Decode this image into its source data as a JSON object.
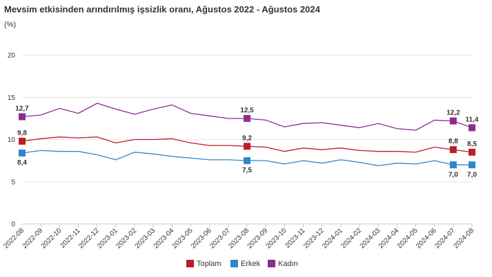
{
  "chart_data": {
    "type": "line",
    "title": "Mevsim etkisinden arındırılmış işsizlik oranı, Ağustos 2022 - Ağustos 2024",
    "ylabel": "(%)",
    "xlabel": "",
    "ylim": [
      0,
      20
    ],
    "yticks": [
      "0",
      "5",
      "10",
      "15",
      "20"
    ],
    "grid": true,
    "legend_position": "bottom",
    "categories": [
      "2022-08",
      "2022-09",
      "2022-10",
      "2022-11",
      "2022-12",
      "2023-01",
      "2023-02",
      "2023-03",
      "2023-04",
      "2023-05",
      "2023-06",
      "2023-07",
      "2023-08",
      "2023-09",
      "2023-10",
      "2023-11",
      "2023-12",
      "2024-01",
      "2024-02",
      "2024-03",
      "2024-04",
      "2024-05",
      "2024-06",
      "2024-07",
      "2024-08"
    ],
    "series": [
      {
        "name": "Toplam",
        "color": "#b81f26",
        "values": [
          9.8,
          10.1,
          10.3,
          10.2,
          10.3,
          9.6,
          10.0,
          10.0,
          10.1,
          9.6,
          9.3,
          9.3,
          9.2,
          9.1,
          8.6,
          9.0,
          8.8,
          9.0,
          8.7,
          8.6,
          8.6,
          8.5,
          9.1,
          8.8,
          8.5
        ],
        "labels": [
          {
            "index": 0,
            "text": "9,8",
            "pos": "above"
          },
          {
            "index": 12,
            "text": "9,2",
            "pos": "above"
          },
          {
            "index": 23,
            "text": "8,8",
            "pos": "above"
          },
          {
            "index": 24,
            "text": "8,5",
            "pos": "above"
          }
        ]
      },
      {
        "name": "Erkek",
        "color": "#2f87c8",
        "values": [
          8.4,
          8.7,
          8.6,
          8.6,
          8.2,
          7.6,
          8.5,
          8.3,
          8.0,
          7.8,
          7.6,
          7.6,
          7.5,
          7.5,
          7.1,
          7.5,
          7.2,
          7.6,
          7.3,
          6.9,
          7.2,
          7.1,
          7.5,
          7.0,
          7.0
        ],
        "labels": [
          {
            "index": 0,
            "text": "8,4",
            "pos": "below"
          },
          {
            "index": 12,
            "text": "7,5",
            "pos": "below"
          },
          {
            "index": 23,
            "text": "7,0",
            "pos": "below"
          },
          {
            "index": 24,
            "text": "7,0",
            "pos": "below"
          }
        ]
      },
      {
        "name": "Kadın",
        "color": "#8e2b8b",
        "values": [
          12.7,
          12.9,
          13.7,
          13.1,
          14.3,
          13.6,
          13.0,
          13.6,
          14.1,
          13.1,
          12.8,
          12.5,
          12.5,
          12.3,
          11.5,
          11.9,
          12.0,
          11.7,
          11.4,
          11.9,
          11.3,
          11.1,
          12.3,
          12.2,
          11.4
        ],
        "labels": [
          {
            "index": 0,
            "text": "12,7",
            "pos": "above"
          },
          {
            "index": 12,
            "text": "12,5",
            "pos": "above"
          },
          {
            "index": 23,
            "text": "12,2",
            "pos": "above"
          },
          {
            "index": 24,
            "text": "11,4",
            "pos": "above"
          }
        ]
      }
    ],
    "legend": [
      "Toplam",
      "Erkek",
      "Kadın"
    ]
  }
}
